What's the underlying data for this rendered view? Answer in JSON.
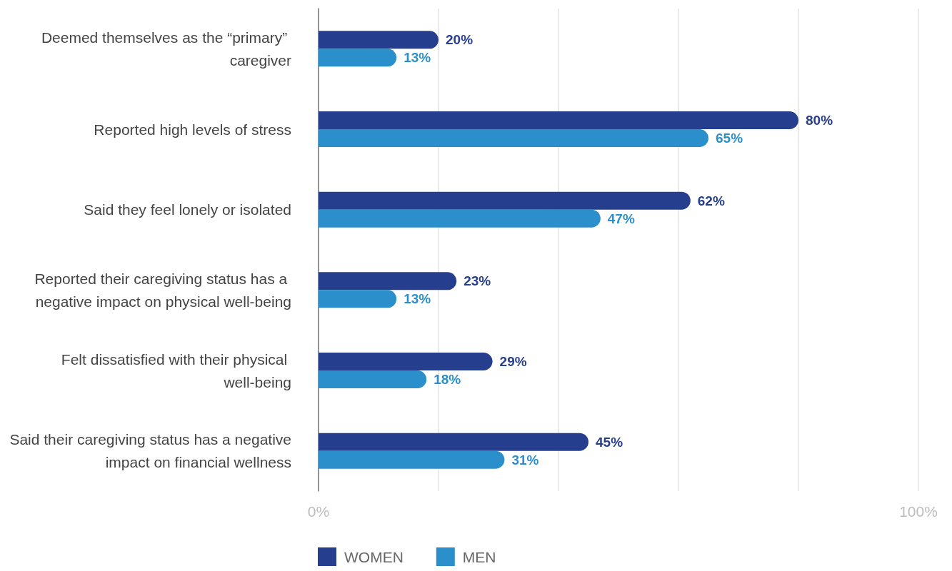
{
  "chart_data": {
    "type": "bar",
    "orientation": "horizontal",
    "categories": [
      "Deemed themselves as the “primary” caregiver",
      "Reported high levels of stress",
      "Said they feel lonely or isolated",
      "Reported their caregiving status has a negative impact on physical well-being",
      "Felt dissatisfied with their physical well-being",
      "Said their caregiving status has a negative impact on financial wellness"
    ],
    "series": [
      {
        "name": "WOMEN",
        "color": "#263e8e",
        "values": [
          20,
          80,
          62,
          23,
          29,
          45
        ],
        "value_labels": [
          "20%",
          "80%",
          "62%",
          "23%",
          "29%",
          "45%"
        ]
      },
      {
        "name": "MEN",
        "color": "#2b8fcb",
        "values": [
          13,
          65,
          47,
          13,
          18,
          31
        ],
        "value_labels": [
          "13%",
          "65%",
          "47%",
          "13%",
          "18%",
          "31%"
        ]
      }
    ],
    "xlim": [
      0,
      100
    ],
    "xticks": [
      {
        "value": 0,
        "label": "0%"
      },
      {
        "value": 20,
        "label": null
      },
      {
        "value": 40,
        "label": null
      },
      {
        "value": 60,
        "label": null
      },
      {
        "value": 80,
        "label": null
      },
      {
        "value": 100,
        "label": "100%"
      }
    ],
    "grid": "x",
    "legend": "bottom"
  }
}
